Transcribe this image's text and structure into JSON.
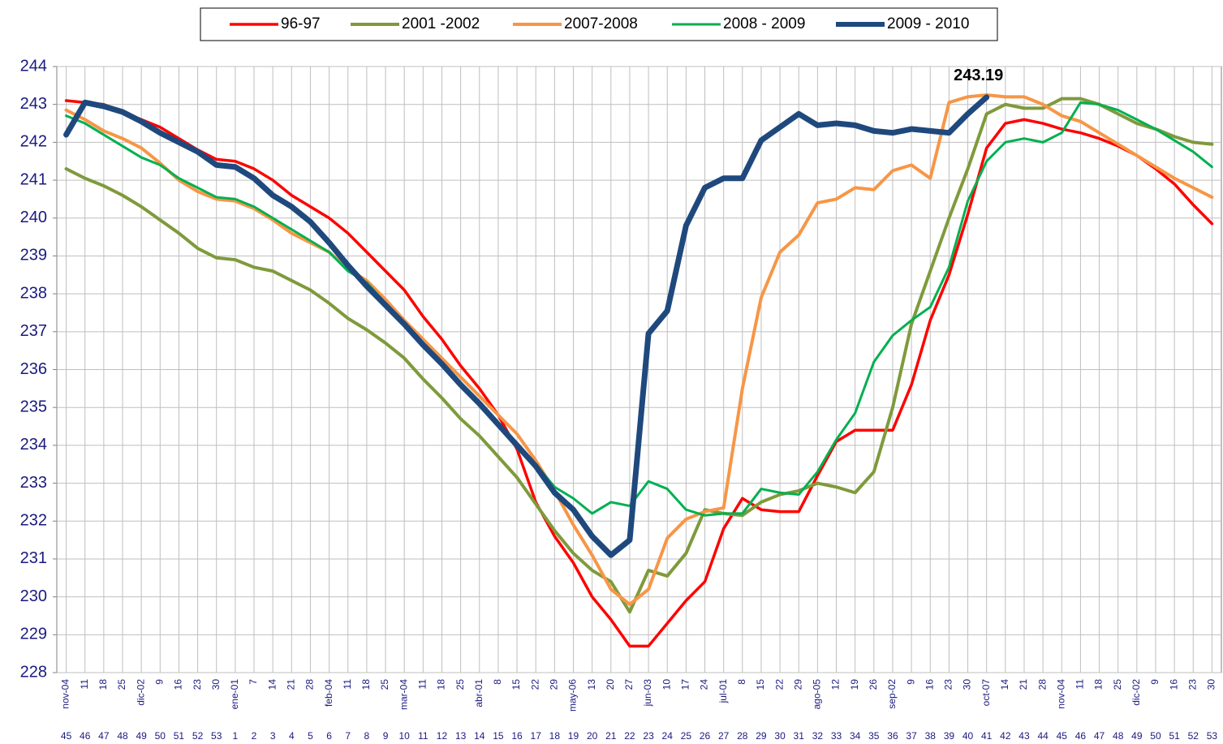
{
  "chart_data": {
    "type": "line",
    "categories": [
      "nov-04",
      "11",
      "18",
      "25",
      "dic-02",
      "9",
      "16",
      "23",
      "30",
      "ene-01",
      "7",
      "14",
      "21",
      "28",
      "feb-04",
      "11",
      "18",
      "25",
      "mar-04",
      "11",
      "18",
      "25",
      "abr-01",
      "8",
      "15",
      "22",
      "29",
      "may-06",
      "13",
      "20",
      "27",
      "jun-03",
      "10",
      "17",
      "24",
      "jul-01",
      "8",
      "15",
      "22",
      "29",
      "ago-05",
      "12",
      "19",
      "26",
      "sep-02",
      "9",
      "16",
      "23",
      "30",
      "oct-07",
      "14",
      "21",
      "28",
      "nov-04",
      "11",
      "18",
      "25",
      "dic-02",
      "9",
      "16",
      "23",
      "30"
    ],
    "weeks": [
      45,
      46,
      47,
      48,
      49,
      50,
      51,
      52,
      53,
      1,
      2,
      3,
      4,
      5,
      6,
      7,
      8,
      9,
      10,
      11,
      12,
      13,
      14,
      15,
      16,
      17,
      18,
      19,
      20,
      21,
      22,
      23,
      24,
      25,
      26,
      27,
      28,
      29,
      30,
      31,
      32,
      33,
      34,
      35,
      36,
      37,
      38,
      39,
      40,
      41,
      42,
      43,
      44,
      45,
      46,
      47,
      48,
      49,
      50,
      51,
      52,
      53
    ],
    "ylim": [
      228,
      244
    ],
    "yticks": [
      228,
      229,
      230,
      231,
      232,
      233,
      234,
      235,
      236,
      237,
      238,
      239,
      240,
      241,
      242,
      243,
      244
    ],
    "grid": true,
    "series": [
      {
        "name": "96-97",
        "color": "#ff0000",
        "width": 3.5,
        "values": [
          243.1,
          243.05,
          243.0,
          242.8,
          242.6,
          242.4,
          242.1,
          241.8,
          241.55,
          241.5,
          241.3,
          241.0,
          240.6,
          240.3,
          240.0,
          239.6,
          239.1,
          238.6,
          238.1,
          237.4,
          236.8,
          236.1,
          235.5,
          234.8,
          233.9,
          232.5,
          231.6,
          230.9,
          230.0,
          229.4,
          228.7,
          228.7,
          229.3,
          229.9,
          230.4,
          231.8,
          232.6,
          232.3,
          232.25,
          232.25,
          233.2,
          234.1,
          234.4,
          234.4,
          234.4,
          235.6,
          237.3,
          238.5,
          240.1,
          241.85,
          242.5,
          242.6,
          242.5,
          242.35,
          242.25,
          242.1,
          241.9,
          241.65,
          241.3,
          240.9,
          240.35,
          239.85
        ]
      },
      {
        "name": "2001 -2002",
        "color": "#7f9a3c",
        "width": 4,
        "values": [
          241.3,
          241.05,
          240.85,
          240.6,
          240.3,
          239.95,
          239.6,
          239.2,
          238.95,
          238.9,
          238.7,
          238.6,
          238.35,
          238.1,
          237.75,
          237.35,
          237.05,
          236.7,
          236.3,
          235.75,
          235.25,
          234.7,
          234.25,
          233.7,
          233.15,
          232.45,
          231.75,
          231.15,
          230.7,
          230.4,
          229.6,
          230.7,
          230.55,
          231.15,
          232.3,
          232.2,
          232.15,
          232.5,
          232.7,
          232.8,
          233.0,
          232.9,
          232.75,
          233.3,
          235.0,
          237.2,
          238.6,
          240.0,
          241.3,
          242.75,
          243.0,
          242.9,
          242.9,
          243.15,
          243.15,
          243.0,
          242.75,
          242.5,
          242.35,
          242.15,
          242.0,
          241.95
        ]
      },
      {
        "name": "2007-2008",
        "color": "#f79646",
        "width": 4,
        "values": [
          242.85,
          242.6,
          242.3,
          242.1,
          241.85,
          241.45,
          241.0,
          240.7,
          240.5,
          240.45,
          240.25,
          239.95,
          239.6,
          239.35,
          239.1,
          238.65,
          238.35,
          237.85,
          237.3,
          236.8,
          236.3,
          235.8,
          235.3,
          234.8,
          234.3,
          233.6,
          232.8,
          231.9,
          231.1,
          230.2,
          229.8,
          230.2,
          231.55,
          232.05,
          232.25,
          232.35,
          235.5,
          237.9,
          239.1,
          239.55,
          240.4,
          240.5,
          240.8,
          240.75,
          241.25,
          241.4,
          241.05,
          243.05,
          243.2,
          243.25,
          243.2,
          243.2,
          243.0,
          242.7,
          242.55,
          242.25,
          241.95,
          241.65,
          241.35,
          241.05,
          240.8,
          240.55
        ]
      },
      {
        "name": "2008 - 2009",
        "color": "#00b050",
        "width": 3,
        "values": [
          242.7,
          242.5,
          242.2,
          241.9,
          241.6,
          241.4,
          241.05,
          240.8,
          240.55,
          240.5,
          240.3,
          240.0,
          239.7,
          239.4,
          239.1,
          238.6,
          238.3,
          237.75,
          237.25,
          236.7,
          236.15,
          235.65,
          235.15,
          234.6,
          234.05,
          233.5,
          232.9,
          232.6,
          232.2,
          232.5,
          232.4,
          233.05,
          232.85,
          232.3,
          232.15,
          232.2,
          232.2,
          232.85,
          232.75,
          232.7,
          233.3,
          234.15,
          234.85,
          236.2,
          236.9,
          237.3,
          237.65,
          238.7,
          240.45,
          241.5,
          242.0,
          242.1,
          242.0,
          242.25,
          243.05,
          243.0,
          242.85,
          242.6,
          242.35,
          242.05,
          241.75,
          241.35
        ]
      },
      {
        "name": "2009 - 2010",
        "color": "#1f497d",
        "width": 7,
        "values": [
          242.2,
          243.05,
          242.95,
          242.8,
          242.55,
          242.25,
          242.0,
          241.75,
          241.4,
          241.35,
          241.05,
          240.6,
          240.3,
          239.9,
          239.35,
          238.75,
          238.2,
          237.7,
          237.2,
          236.65,
          236.15,
          235.6,
          235.1,
          234.55,
          234.0,
          233.45,
          232.75,
          232.3,
          231.6,
          231.1,
          231.5,
          236.95,
          237.55,
          239.8,
          240.8,
          241.05,
          241.05,
          242.05,
          242.4,
          242.75,
          242.45,
          242.5,
          242.45,
          242.3,
          242.25,
          242.35,
          242.3,
          242.25,
          242.75,
          243.19,
          null,
          null,
          null,
          null,
          null,
          null,
          null,
          null,
          null,
          null,
          null,
          null
        ]
      }
    ]
  }
}
